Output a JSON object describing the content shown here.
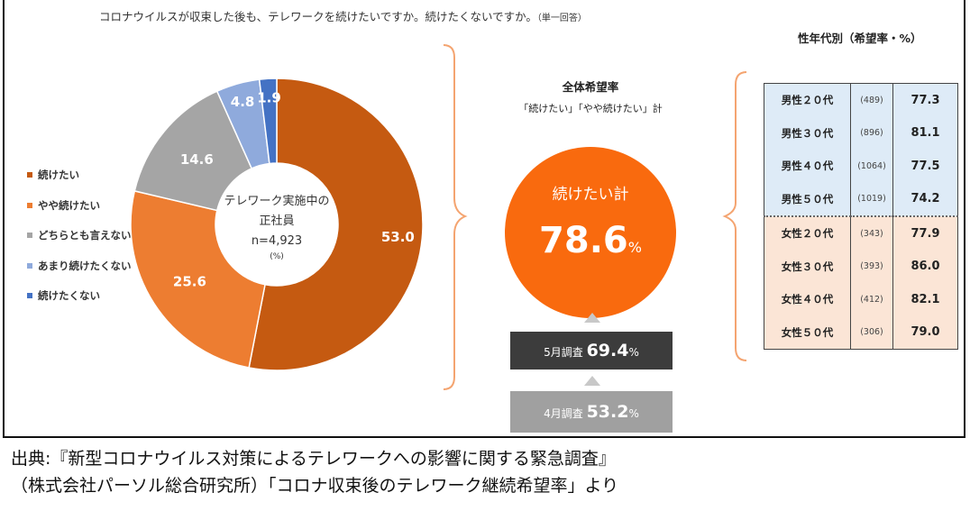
{
  "question": "コロナウイルスが収束した後も、テレワークを続けたいですか。続けたくないですか。",
  "question_note": "（単一回答）",
  "right_title": "性年代別（希望率・%）",
  "chart_data": {
    "type": "pie",
    "variant": "donut",
    "unit": "%",
    "center_label": [
      "テレワーク実施中の",
      "正社員",
      "n=4,923",
      "(%)"
    ],
    "categories": [
      "続けたい",
      "やや続けたい",
      "どちらとも言えない",
      "あまり続けたくない",
      "続けたくない"
    ],
    "values": [
      53.0,
      25.6,
      14.6,
      4.8,
      1.9
    ],
    "value_labels": [
      "53.0",
      "25.6",
      "14.6",
      "4.8",
      "1.9"
    ],
    "colors": [
      "#c55a11",
      "#ed7d31",
      "#a5a5a5",
      "#8faadc",
      "#4472c4"
    ],
    "legend_position": "left"
  },
  "overall": {
    "title": "全体希望率",
    "subtitle": "「続けたい」「やや続けたい」計",
    "circle_label": "続けたい計",
    "value": "78.6",
    "unit": "%",
    "may_label": "5月調査",
    "may_value": "69.4",
    "may_unit": "%",
    "apr_label": "4月調査",
    "apr_value": "53.2",
    "apr_unit": "%"
  },
  "table": {
    "rows": [
      {
        "group": "男性２０代",
        "n": "(489)",
        "rate": "77.3"
      },
      {
        "group": "男性３０代",
        "n": "(896)",
        "rate": "81.1"
      },
      {
        "group": "男性４０代",
        "n": "(1064)",
        "rate": "77.5"
      },
      {
        "group": "男性５０代",
        "n": "(1019)",
        "rate": "74.2"
      },
      {
        "group": "女性２０代",
        "n": "(343)",
        "rate": "77.9"
      },
      {
        "group": "女性３０代",
        "n": "(393)",
        "rate": "86.0"
      },
      {
        "group": "女性４０代",
        "n": "(412)",
        "rate": "82.1"
      },
      {
        "group": "女性５０代",
        "n": "(306)",
        "rate": "79.0"
      }
    ]
  },
  "footer": [
    "出典:『新型コロナウイルス対策によるテレワークへの影響に関する緊急調査』",
    "（株式会社パーソル総合研究所）「コロナ収束後のテレワーク継続希望率」より"
  ]
}
